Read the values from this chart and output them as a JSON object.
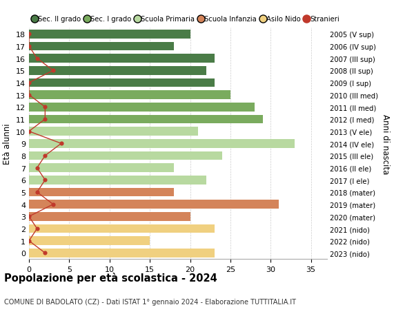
{
  "ages": [
    18,
    17,
    16,
    15,
    14,
    13,
    12,
    11,
    10,
    9,
    8,
    7,
    6,
    5,
    4,
    3,
    2,
    1,
    0
  ],
  "right_labels": [
    "2005 (V sup)",
    "2006 (IV sup)",
    "2007 (III sup)",
    "2008 (II sup)",
    "2009 (I sup)",
    "2010 (III med)",
    "2011 (II med)",
    "2012 (I med)",
    "2013 (V ele)",
    "2014 (IV ele)",
    "2015 (III ele)",
    "2016 (II ele)",
    "2017 (I ele)",
    "2018 (mater)",
    "2019 (mater)",
    "2020 (mater)",
    "2021 (nido)",
    "2022 (nido)",
    "2023 (nido)"
  ],
  "bar_values": [
    20,
    18,
    23,
    22,
    23,
    25,
    28,
    29,
    21,
    33,
    24,
    18,
    22,
    18,
    31,
    20,
    23,
    15,
    23
  ],
  "bar_colors": [
    "#4a7c47",
    "#4a7c47",
    "#4a7c47",
    "#4a7c47",
    "#4a7c47",
    "#7aab5e",
    "#7aab5e",
    "#7aab5e",
    "#b8d9a0",
    "#b8d9a0",
    "#b8d9a0",
    "#b8d9a0",
    "#b8d9a0",
    "#d4845a",
    "#d4845a",
    "#d4845a",
    "#f0d080",
    "#f0d080",
    "#f0d080"
  ],
  "stranieri_values": [
    0,
    0,
    1,
    3,
    0,
    0,
    2,
    2,
    0,
    4,
    2,
    1,
    2,
    1,
    3,
    0,
    1,
    0,
    2
  ],
  "stranieri_color": "#c0392b",
  "title": "Popolazione per età scolastica - 2024",
  "subtitle": "COMUNE DI BADOLATO (CZ) - Dati ISTAT 1° gennaio 2024 - Elaborazione TUTTITALIA.IT",
  "ylabel": "Età alunni",
  "right_ylabel": "Anni di nascita",
  "xlim": [
    0,
    37
  ],
  "xticks": [
    0,
    5,
    10,
    15,
    20,
    25,
    30,
    35
  ],
  "legend_labels": [
    "Sec. II grado",
    "Sec. I grado",
    "Scuola Primaria",
    "Scuola Infanzia",
    "Asilo Nido",
    "Stranieri"
  ],
  "legend_colors": [
    "#4a7c47",
    "#7aab5e",
    "#b8d9a0",
    "#d4845a",
    "#f0d080",
    "#c0392b"
  ],
  "background_color": "#ffffff",
  "grid_color": "#cccccc",
  "bar_height": 0.72
}
